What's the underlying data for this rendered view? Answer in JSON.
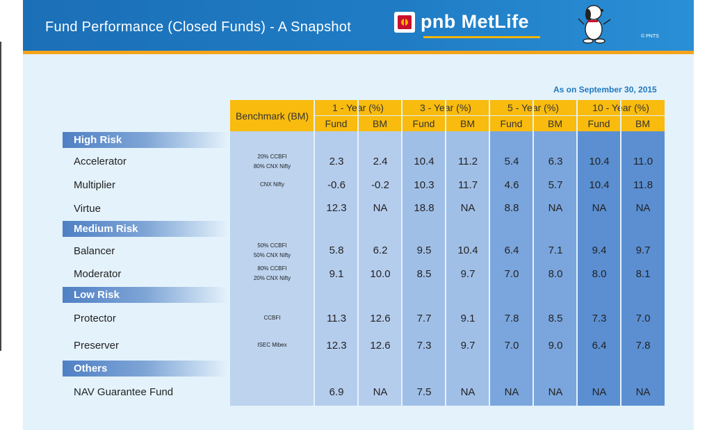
{
  "header": {
    "title": "Fund Performance (Closed Funds) - A Snapshot",
    "brand": "pnb MetLife",
    "copyright": "© PNTS"
  },
  "as_on": "As on September 30, 2015",
  "table": {
    "benchmark_header": "Benchmark (BM)",
    "periods": [
      "1 - Year (%)",
      "3 - Year (%)",
      "5 - Year (%)",
      "10 - Year (%)"
    ],
    "sub_headers": [
      "Fund",
      "BM",
      "Fund",
      "BM",
      "Fund",
      "BM",
      "Fund",
      "BM"
    ],
    "categories": [
      {
        "label": "High Risk",
        "funds": [
          {
            "name": "Accelerator",
            "benchmark": [
              "20% CCBFI",
              "80% CNX Nifty"
            ],
            "values": [
              "2.3",
              "2.4",
              "10.4",
              "11.2",
              "5.4",
              "6.3",
              "10.4",
              "11.0"
            ]
          },
          {
            "name": "Multiplier",
            "benchmark": [
              "CNX Nifty"
            ],
            "values": [
              "-0.6",
              "-0.2",
              "10.3",
              "11.7",
              "4.6",
              "5.7",
              "10.4",
              "11.8"
            ]
          },
          {
            "name": "Virtue",
            "benchmark": [],
            "values": [
              "12.3",
              "NA",
              "18.8",
              "NA",
              "8.8",
              "NA",
              "NA",
              "NA"
            ]
          }
        ]
      },
      {
        "label": "Medium Risk",
        "funds": [
          {
            "name": "Balancer",
            "benchmark": [
              "50% CCBFI",
              "50% CNX Nifty"
            ],
            "values": [
              "5.8",
              "6.2",
              "9.5",
              "10.4",
              "6.4",
              "7.1",
              "9.4",
              "9.7"
            ]
          },
          {
            "name": "Moderator",
            "benchmark": [
              "80% CCBFI",
              "20% CNX Nifty"
            ],
            "values": [
              "9.1",
              "10.0",
              "8.5",
              "9.7",
              "7.0",
              "8.0",
              "8.0",
              "8.1"
            ]
          }
        ]
      },
      {
        "label": "Low Risk",
        "funds": [
          {
            "name": "Protector",
            "benchmark": [
              "CCBFI"
            ],
            "values": [
              "11.3",
              "12.6",
              "7.7",
              "9.1",
              "7.8",
              "8.5",
              "7.3",
              "7.0"
            ]
          },
          {
            "name": "Preserver",
            "benchmark": [
              "ISEC Mibex"
            ],
            "values": [
              "12.3",
              "12.6",
              "7.3",
              "9.7",
              "7.0",
              "9.0",
              "6.4",
              "7.8"
            ]
          }
        ]
      },
      {
        "label": "Others",
        "funds": [
          {
            "name": "NAV Guarantee Fund",
            "benchmark": [],
            "values": [
              "6.9",
              "NA",
              "7.5",
              "NA",
              "NA",
              "NA",
              "NA",
              "NA"
            ]
          }
        ]
      }
    ]
  },
  "colors": {
    "header_blue": "#1f7cc4",
    "accent_orange": "#f4a41c",
    "header_yellow": "#f8bb0e",
    "as_on_blue": "#1f78bf"
  }
}
